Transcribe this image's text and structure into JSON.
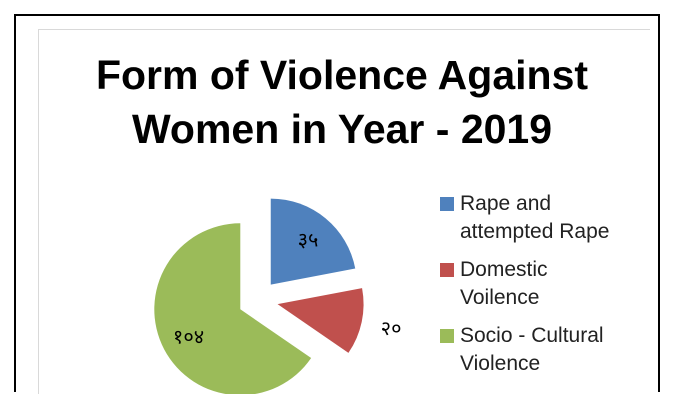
{
  "chart_data": {
    "type": "pie",
    "title_lines": [
      "Form of Violence Against",
      "Women in Year - 2019"
    ],
    "labels": [
      "Rape and attempted Rape",
      "Domestic Voilence",
      "Socio - Cultural Violence"
    ],
    "legend_lines": [
      [
        "Rape and",
        "attempted Rape"
      ],
      [
        "Domestic",
        "Voilence"
      ],
      [
        "Socio - Cultural",
        "Violence"
      ]
    ],
    "values": [
      35,
      20,
      104
    ],
    "data_labels": [
      "३५",
      "२०",
      "१०४"
    ],
    "colors": [
      "#4f81bd",
      "#c0504d",
      "#9bbb59"
    ],
    "exploded": true,
    "legend_position": "right"
  }
}
